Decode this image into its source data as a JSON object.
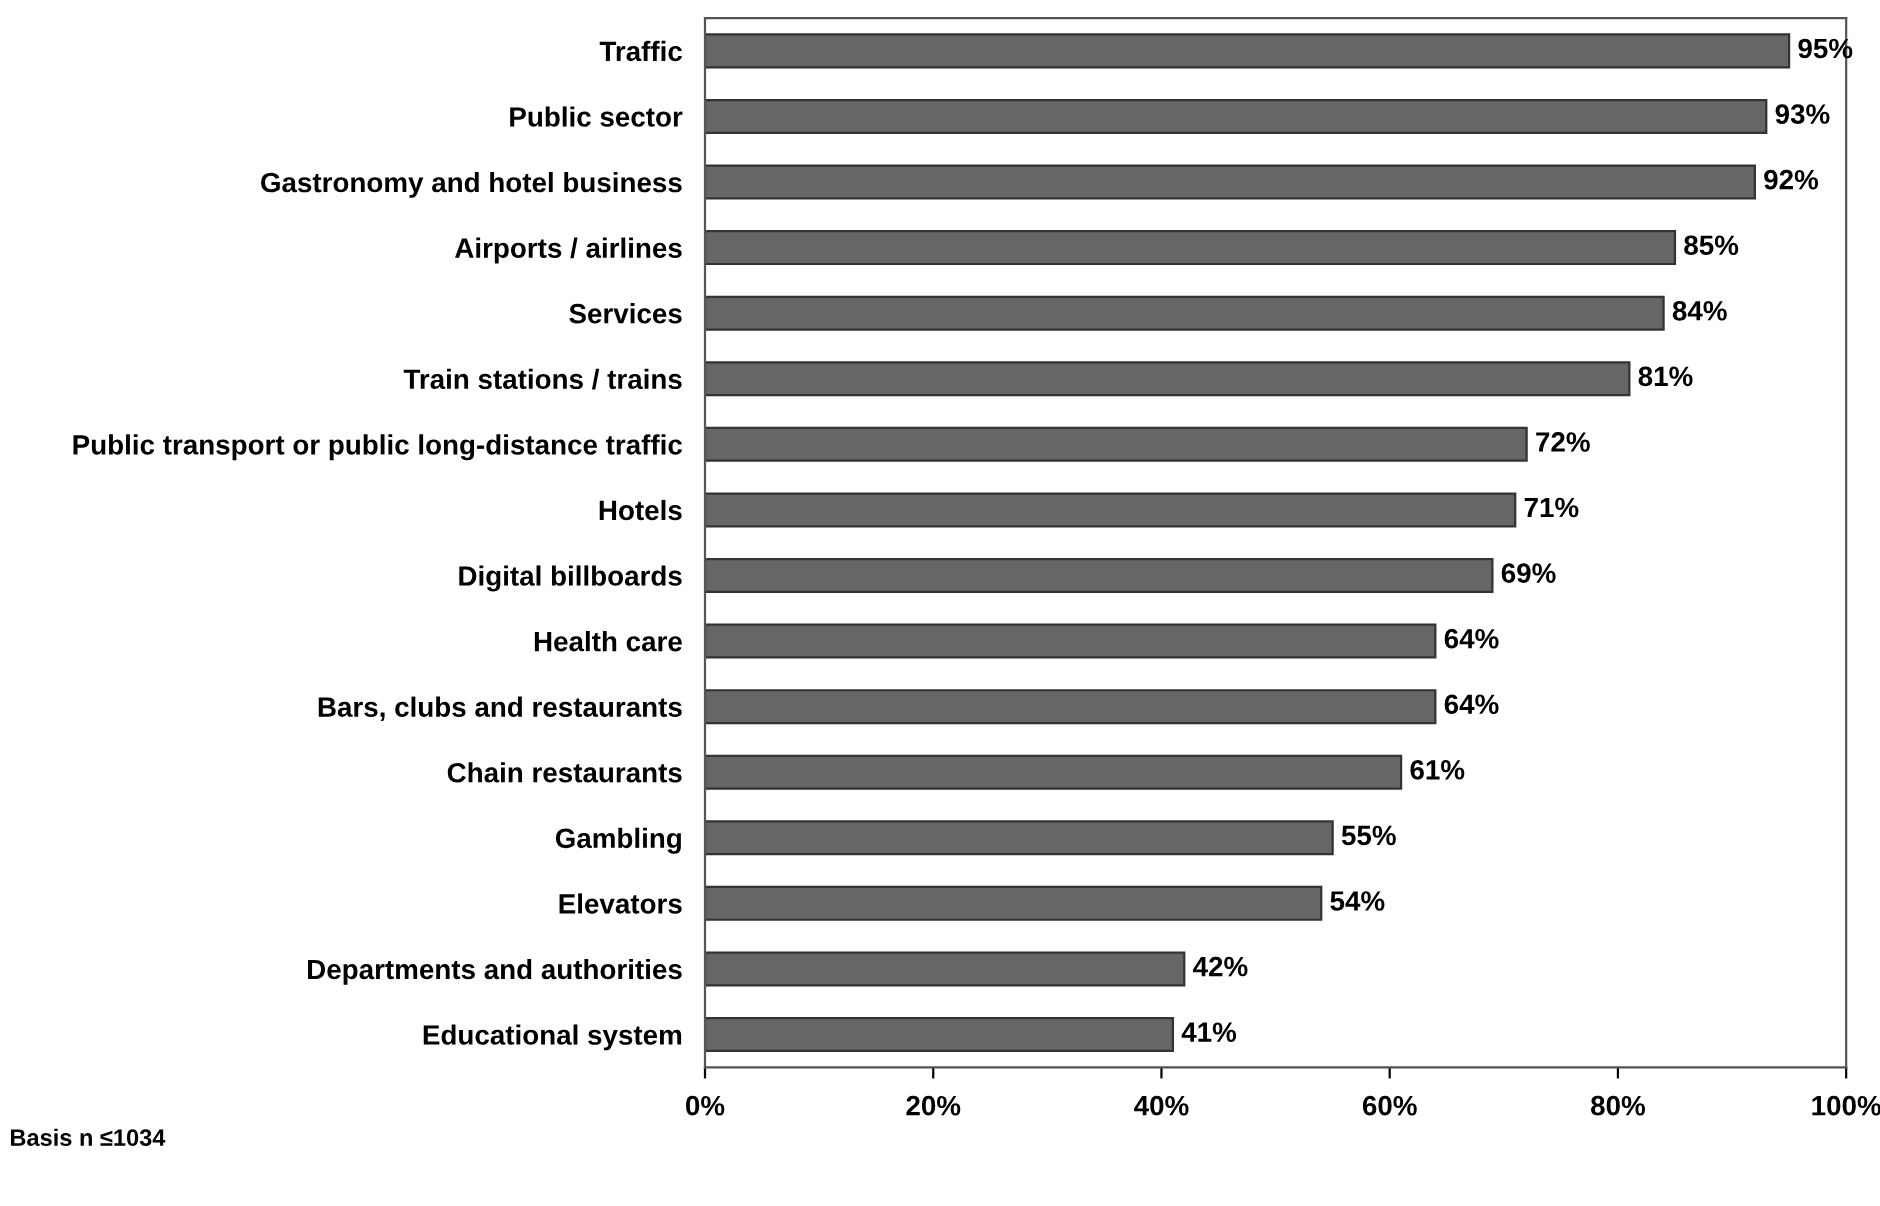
{
  "chart_data": {
    "type": "bar",
    "orientation": "horizontal",
    "categories": [
      "Traffic",
      "Public sector",
      "Gastronomy and hotel business",
      "Airports / airlines",
      "Services",
      "Train stations / trains",
      "Public transport or public long-distance traffic",
      "Hotels",
      "Digital billboards",
      "Health care",
      "Bars, clubs and restaurants",
      "Chain restaurants",
      "Gambling",
      "Elevators",
      "Departments and authorities",
      "Educational system"
    ],
    "values": [
      95,
      93,
      92,
      85,
      84,
      81,
      72,
      71,
      69,
      64,
      64,
      61,
      55,
      54,
      42,
      41
    ],
    "value_labels": [
      "95%",
      "93%",
      "92%",
      "85%",
      "84%",
      "81%",
      "72%",
      "71%",
      "69%",
      "64%",
      "64%",
      "61%",
      "55%",
      "54%",
      "42%",
      "41%"
    ],
    "color": "#666666",
    "xlim": [
      0,
      100
    ],
    "xticks": [
      {
        "value": 0,
        "label": "0%"
      },
      {
        "value": 20,
        "label": "20%"
      },
      {
        "value": 40,
        "label": "40%"
      },
      {
        "value": 60,
        "label": "60%"
      },
      {
        "value": 80,
        "label": "80%"
      },
      {
        "value": 100,
        "label": "100%"
      }
    ],
    "annotations": [
      "Basis n ≤1034"
    ]
  }
}
